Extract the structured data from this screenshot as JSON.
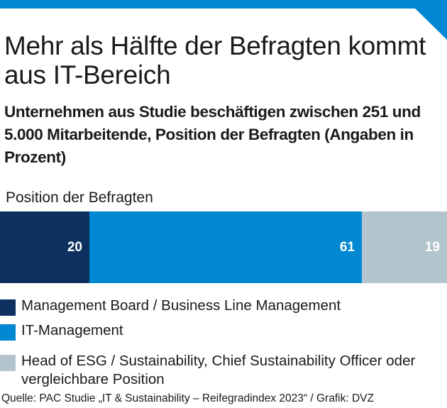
{
  "colors": {
    "accent": "#0088d2",
    "management_board": "#0d3060",
    "it_management": "#0088d2",
    "head_esg": "#b2c4cd"
  },
  "header": {
    "title": "Mehr als Hälfte der Befragten kommt aus IT-Bereich",
    "subtitle": "Unternehmen aus Studie beschäftigen zwischen 251 und 5.000 Mitarbeitende, Position der Befragten (Angaben in Prozent)"
  },
  "chart_data": {
    "type": "bar",
    "orientation": "horizontal-stacked",
    "title": "Mehr als Hälfte der Befragten kommt aus IT-Bereich",
    "subtitle": "Unternehmen aus Studie beschäftigen zwischen 251 und 5.000 Mitarbeitende, Position der Befragten (Angaben in Prozent)",
    "categories": [
      "Position der Befragten"
    ],
    "series": [
      {
        "name": "Management Board / Business Line Management",
        "values": [
          20
        ],
        "color": "#0d3060"
      },
      {
        "name": "IT-Management",
        "values": [
          61
        ],
        "color": "#0088d2"
      },
      {
        "name": "Head of ESG / Sustainability, Chief Sustainability Officer oder vergleichbare Position",
        "values": [
          19
        ],
        "color": "#b2c4cd"
      }
    ],
    "xlim": [
      0,
      100
    ],
    "unit": "Prozent",
    "legend_position": "bottom",
    "grid": false
  },
  "chart_label": "Position der Befragten",
  "source": "Quelle: PAC Studie „IT & Sustainability – Reifegradindex 2023“ / Grafik: DVZ"
}
